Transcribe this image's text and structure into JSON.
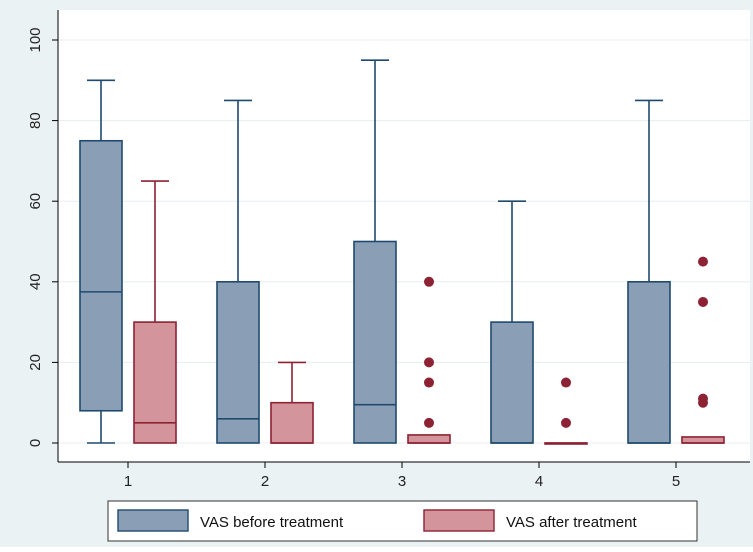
{
  "chart_data": {
    "type": "box",
    "title": "",
    "xlabel": "",
    "ylabel": "",
    "categories": [
      "1",
      "2",
      "3",
      "4",
      "5"
    ],
    "ylim": [
      0,
      100
    ],
    "yticks": [
      "0",
      "20",
      "40",
      "60",
      "80",
      "100"
    ],
    "grid": "horizontal",
    "legend_position": "bottom",
    "colors": {
      "background": "#eaf2f3",
      "plot_background": "#ffffff",
      "before_fill": "#8a9fb5",
      "before_stroke": "#1f4a6e",
      "after_fill": "#d4949c",
      "after_stroke": "#8c2233",
      "grid": "#e8edf0",
      "axis": "#000000"
    },
    "series": [
      {
        "name": "VAS before treatment",
        "boxes": [
          {
            "min": 0,
            "q1": 8,
            "median": 37.5,
            "q3": 75,
            "max": 90,
            "outliers": []
          },
          {
            "min": 0,
            "q1": 0,
            "median": 6,
            "q3": 40,
            "max": 85,
            "outliers": []
          },
          {
            "min": 0,
            "q1": 0,
            "median": 9.5,
            "q3": 50,
            "max": 95,
            "outliers": []
          },
          {
            "min": 0,
            "q1": 0,
            "median": 0,
            "q3": 30,
            "max": 60,
            "outliers": []
          },
          {
            "min": 0,
            "q1": 0,
            "median": 0,
            "q3": 40,
            "max": 85,
            "outliers": []
          }
        ]
      },
      {
        "name": "VAS after treatment",
        "boxes": [
          {
            "min": 0,
            "q1": 0,
            "median": 5,
            "q3": 30,
            "max": 65,
            "outliers": []
          },
          {
            "min": 0,
            "q1": 0,
            "median": 0,
            "q3": 10,
            "max": 20,
            "outliers": []
          },
          {
            "min": 0,
            "q1": 0,
            "median": 0,
            "q3": 2,
            "max": 2,
            "outliers": [
              5,
              15,
              20,
              40
            ]
          },
          {
            "min": 0,
            "q1": 0,
            "median": 0,
            "q3": 0,
            "max": 0,
            "outliers": [
              5,
              15
            ]
          },
          {
            "min": 0,
            "q1": 0,
            "median": 0,
            "q3": 1.5,
            "max": 1.5,
            "outliers": [
              10,
              11,
              35,
              45
            ]
          }
        ]
      }
    ]
  }
}
